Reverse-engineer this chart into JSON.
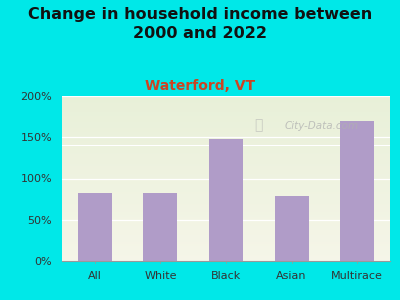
{
  "title": "Change in household income between\n2000 and 2022",
  "subtitle": "Waterford, VT",
  "categories": [
    "All",
    "White",
    "Black",
    "Asian",
    "Multirace"
  ],
  "values": [
    83,
    82,
    148,
    79,
    170
  ],
  "bar_color": "#b09cc8",
  "title_fontsize": 11.5,
  "subtitle_fontsize": 10,
  "subtitle_color": "#cc4422",
  "title_color": "#111111",
  "background_outer": "#00e8e8",
  "background_inner_top": "#e8f0d8",
  "background_inner_bottom": "#f0f0e4",
  "ylim": [
    0,
    200
  ],
  "yticks": [
    0,
    50,
    100,
    150,
    200
  ],
  "ytick_labels": [
    "0%",
    "50%",
    "100%",
    "150%",
    "200%"
  ],
  "watermark": "City-Data.com",
  "watermark_color": "#b0b0b0"
}
